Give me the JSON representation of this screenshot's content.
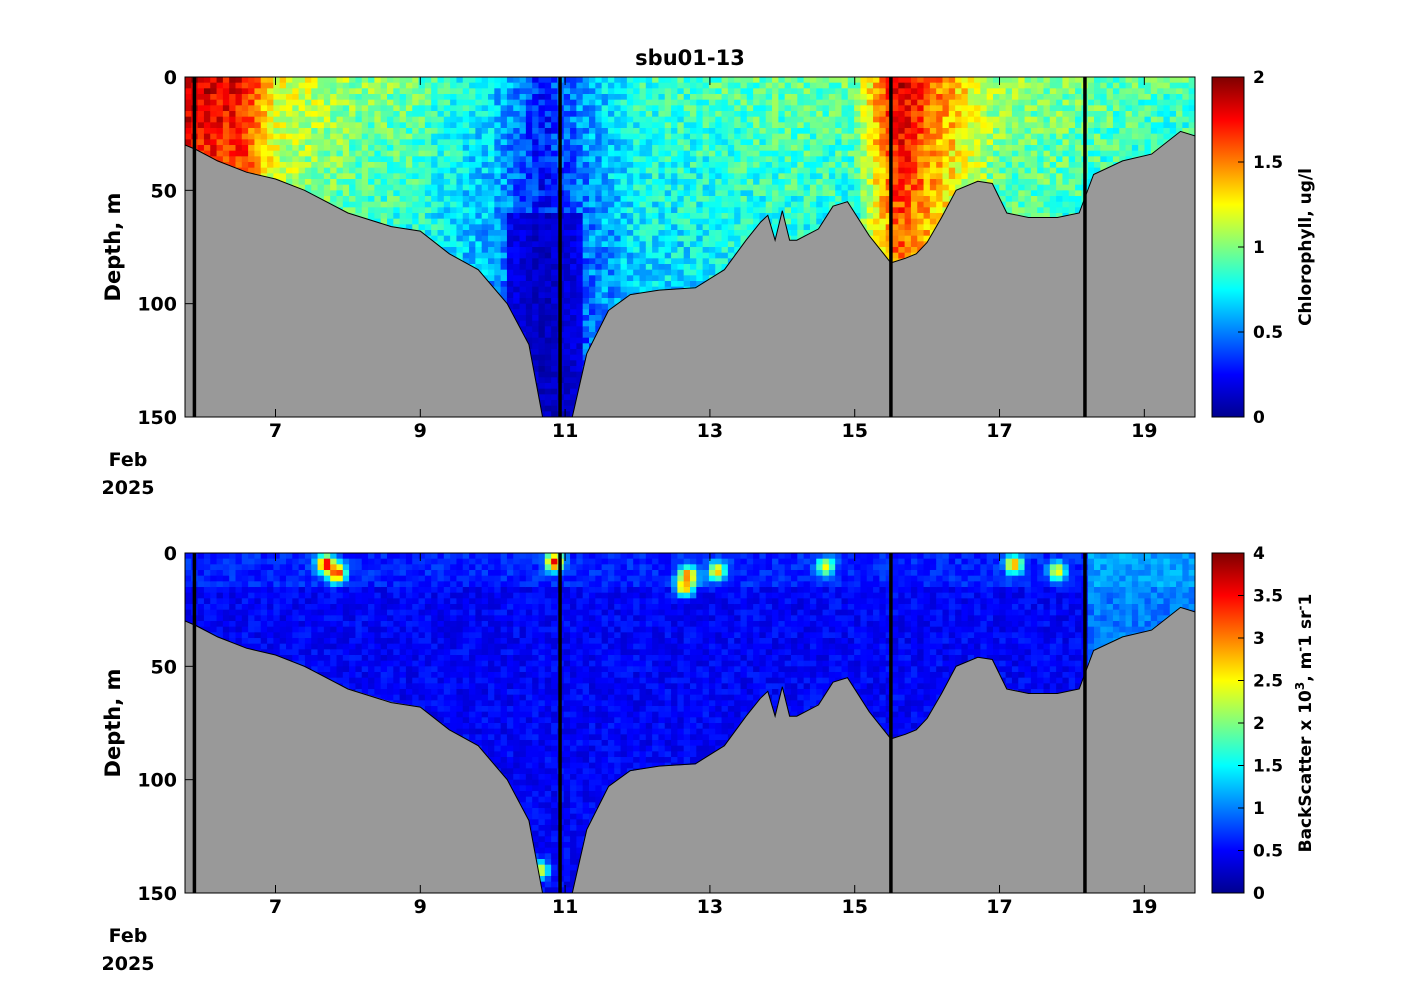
{
  "figure_title": "sbu01-13",
  "x_date_label": [
    "Feb",
    "2025"
  ],
  "colors": {
    "seafloor": "#999999",
    "divider": "#000000",
    "colormap": [
      "#00008f",
      "#0000ff",
      "#007fff",
      "#00ffff",
      "#7fff7f",
      "#ffff00",
      "#ff7f00",
      "#ff0000",
      "#7f0000"
    ]
  },
  "chart_data": [
    {
      "type": "heatmap",
      "title": "sbu01-13",
      "xlabel": "",
      "ylabel": "Depth, m",
      "x_unit": "day of Feb 2025",
      "xlim": [
        5.75,
        19.7
      ],
      "ylim": [
        150,
        0
      ],
      "x_ticks": [
        7,
        9,
        11,
        13,
        15,
        17,
        19
      ],
      "y_ticks": [
        0,
        50,
        100,
        150
      ],
      "colorbar": {
        "label": "Chlorophyll, ug/l",
        "range": [
          0,
          2
        ],
        "ticks": [
          "0",
          "0.5",
          "1",
          "1.5",
          "2"
        ]
      },
      "colormap": "jet",
      "section_dividers_day": [
        5.88,
        10.93,
        15.5,
        18.18
      ],
      "bottom_depth_profile": {
        "day": [
          5.75,
          5.9,
          6.2,
          6.6,
          7.0,
          7.4,
          8.0,
          8.6,
          9.0,
          9.4,
          9.8,
          10.2,
          10.5,
          10.7,
          10.85,
          11.1,
          11.3,
          11.6,
          11.9,
          12.3,
          12.8,
          13.2,
          13.5,
          13.7,
          13.8,
          13.9,
          14.0,
          14.1,
          14.2,
          14.5,
          14.7,
          14.9,
          15.2,
          15.5,
          15.7,
          15.85,
          16.0,
          16.2,
          16.4,
          16.7,
          16.9,
          17.1,
          17.4,
          17.8,
          18.1,
          18.3,
          18.7,
          19.1,
          19.5,
          19.7
        ],
        "depth_m": [
          30,
          32,
          37,
          42,
          45,
          50,
          60,
          66,
          68,
          78,
          85,
          100,
          118,
          152,
          152,
          150,
          122,
          103,
          96,
          94,
          93,
          85,
          72,
          64,
          61,
          72,
          59,
          72,
          72,
          67,
          57,
          55,
          70,
          82,
          80,
          78,
          73,
          62,
          50,
          46,
          47,
          60,
          62,
          62,
          60,
          43,
          37,
          34,
          24,
          26
        ]
      },
      "value_description_by_day": {
        "day": [
          5.8,
          6.6,
          7.0,
          8.0,
          9.0,
          10.0,
          10.7,
          11.2,
          12.0,
          13.0,
          14.0,
          15.0,
          15.6,
          16.2,
          17.0,
          18.0,
          18.5,
          19.5
        ],
        "surface_chlorophyll_ugl": [
          1.9,
          1.75,
          1.25,
          1.05,
          0.95,
          0.7,
          0.3,
          0.55,
          0.85,
          0.9,
          0.95,
          0.95,
          1.9,
          1.5,
          1.05,
          1.0,
          0.95,
          0.9
        ]
      }
    },
    {
      "type": "heatmap",
      "title": "",
      "xlabel": "",
      "ylabel": "Depth, m",
      "x_unit": "day of Feb 2025",
      "xlim": [
        5.75,
        19.7
      ],
      "ylim": [
        150,
        0
      ],
      "x_ticks": [
        7,
        9,
        11,
        13,
        15,
        17,
        19
      ],
      "y_ticks": [
        0,
        50,
        100,
        150
      ],
      "colorbar": {
        "label": "BackScatter x 10<sup>3</sup>, m<sup>-</sup>1 sr<sup>-</sup>1",
        "range": [
          0,
          4
        ],
        "ticks": [
          "0",
          "0.5",
          "1",
          "1.5",
          "2",
          "2.5",
          "3",
          "3.5",
          "4"
        ]
      },
      "colormap": "jet",
      "section_dividers_day": [
        5.88,
        10.93,
        15.5,
        18.18
      ],
      "background_backscatter": 0.3,
      "high_backscatter_patches": [
        {
          "day": 7.7,
          "depth_m": 5,
          "value": 3.8
        },
        {
          "day": 7.85,
          "depth_m": 9,
          "value": 3.5
        },
        {
          "day": 10.85,
          "depth_m": 4,
          "value": 3.6
        },
        {
          "day": 12.7,
          "depth_m": 10,
          "value": 3.2
        },
        {
          "day": 12.65,
          "depth_m": 15,
          "value": 3.0
        },
        {
          "day": 13.1,
          "depth_m": 8,
          "value": 2.8
        },
        {
          "day": 14.6,
          "depth_m": 6,
          "value": 2.5
        },
        {
          "day": 17.2,
          "depth_m": 5,
          "value": 3.0
        },
        {
          "day": 17.8,
          "depth_m": 8,
          "value": 2.6
        },
        {
          "day": 10.65,
          "depth_m": 140,
          "value": 2.5
        },
        {
          "day": 18.8,
          "depth_m": 20,
          "value": 1.2
        }
      ]
    }
  ]
}
